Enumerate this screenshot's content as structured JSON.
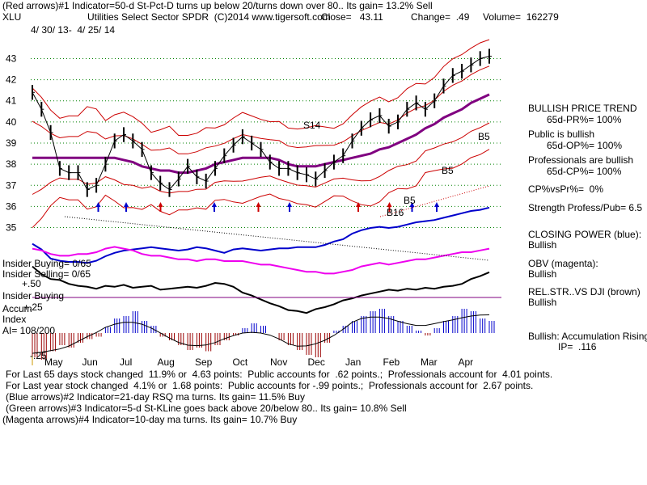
{
  "header": {
    "line1": "(Red arrows)#1 Indicator=50-d St-Pct-D turns up below 20/turns down over 80.. Its gain= 13.2% Sell",
    "symbol": "XLU",
    "title": "Utilities Select Sector SPDR  (C)2014 www.tigersoft.com",
    "close": "Close=   43.11",
    "change": "Change=  .49",
    "volume": "Volume=  162279",
    "date_range": "4/ 30/ 13-  4/ 25/ 14"
  },
  "chart_data": [
    {
      "type": "line",
      "name": "price-panel",
      "title": "Utilities Select Sector SPDR",
      "y_ticks": [
        "43",
        "42",
        "41",
        "40",
        "39",
        "38",
        "37",
        "36",
        "35"
      ],
      "ylim": [
        34.6,
        43.4
      ],
      "x_ticks": [
        "May",
        "Jun",
        "Jul",
        "Aug",
        "Sep",
        "Oct",
        "Nov",
        "Dec",
        "Jan",
        "Feb",
        "Mar",
        "Apr"
      ],
      "x": [
        0,
        5,
        10,
        15,
        20,
        25,
        30,
        35,
        40,
        45,
        50,
        55,
        60,
        65,
        70,
        75,
        80,
        85,
        90,
        95,
        100,
        105,
        110,
        115,
        120,
        125,
        130,
        135,
        140,
        145,
        150,
        155,
        160,
        165,
        170,
        175,
        180,
        185,
        190,
        195,
        200,
        205,
        210,
        215,
        220,
        225,
        230,
        235,
        240,
        245,
        250
      ],
      "series": [
        {
          "name": "XLU close",
          "values": [
            41.4,
            40.6,
            39.5,
            37.8,
            37.6,
            37.6,
            36.8,
            37.0,
            38.0,
            39.1,
            39.4,
            39.1,
            38.7,
            37.6,
            37.1,
            36.8,
            37.3,
            37.9,
            37.4,
            37.2,
            37.8,
            38.4,
            38.9,
            39.3,
            39.0,
            38.7,
            38.1,
            37.8,
            37.8,
            37.6,
            37.5,
            37.3,
            37.7,
            38.1,
            38.4,
            39.1,
            39.7,
            40.1,
            40.3,
            39.8,
            40.0,
            40.6,
            40.9,
            40.6,
            41.0,
            41.7,
            42.2,
            42.4,
            42.7,
            43.0,
            43.11
          ]
        },
        {
          "name": "65-dma",
          "values": [
            38.3,
            38.3,
            38.3,
            38.3,
            38.3,
            38.3,
            38.3,
            38.3,
            38.3,
            38.3,
            38.2,
            38.1,
            37.9,
            37.8,
            37.7,
            37.7,
            37.6,
            37.6,
            37.7,
            37.8,
            38.0,
            38.1,
            38.2,
            38.3,
            38.3,
            38.3,
            38.3,
            38.2,
            38.0,
            37.9,
            37.9,
            37.9,
            38.0,
            38.1,
            38.2,
            38.3,
            38.4,
            38.5,
            38.7,
            38.8,
            39.0,
            39.2,
            39.4,
            39.7,
            39.9,
            40.2,
            40.4,
            40.6,
            40.9,
            41.1,
            41.3
          ]
        }
      ]
    },
    {
      "type": "line",
      "name": "closing-power",
      "series": [
        {
          "name": "Closing Power (blue)",
          "values": [
            0.6,
            0.1,
            -0.7,
            -0.9,
            -1.0,
            -1.0,
            -1.1,
            -0.9,
            -0.5,
            -0.2,
            0.0,
            0.1,
            0.2,
            0.3,
            0.2,
            0.1,
            0.0,
            0.1,
            0.3,
            0.2,
            0.0,
            -0.2,
            0.1,
            0.2,
            0.1,
            0.0,
            0.1,
            0.2,
            0.2,
            0.3,
            0.3,
            0.3,
            0.5,
            0.8,
            1.0,
            1.5,
            1.8,
            2.0,
            2.1,
            2.0,
            2.1,
            2.3,
            2.5,
            2.6,
            2.7,
            2.9,
            3.1,
            3.3,
            3.5,
            3.6,
            3.8
          ]
        },
        {
          "name": "OBV (magenta)",
          "values": [
            0.2,
            0.1,
            -0.1,
            -0.2,
            -0.2,
            -0.1,
            -0.1,
            0.0,
            0.2,
            0.3,
            0.2,
            0.1,
            -0.1,
            -0.2,
            -0.2,
            -0.3,
            -0.4,
            -0.4,
            -0.5,
            -0.4,
            -0.4,
            -0.5,
            -0.5,
            -0.5,
            -0.6,
            -0.7,
            -0.7,
            -0.8,
            -0.9,
            -1.0,
            -1.1,
            -1.1,
            -1.2,
            -1.2,
            -1.1,
            -1.0,
            -0.8,
            -0.7,
            -0.6,
            -0.7,
            -0.6,
            -0.5,
            -0.4,
            -0.4,
            -0.3,
            -0.2,
            -0.1,
            0.0,
            0.0,
            0.1,
            0.2
          ]
        }
      ]
    },
    {
      "type": "line",
      "name": "rel-str-vs-dji",
      "series": [
        {
          "name": "REL.STR..VS DJI",
          "values": [
            3.2,
            2.4,
            1.9,
            1.8,
            1.4,
            1.2,
            1.1,
            0.9,
            1.2,
            1.1,
            1.3,
            1.0,
            1.1,
            1.2,
            0.8,
            0.9,
            1.0,
            1.1,
            1.0,
            1.2,
            1.5,
            1.4,
            1.1,
            0.5,
            0.2,
            -0.2,
            -0.6,
            -0.9,
            -1.3,
            -1.4,
            -1.6,
            -1.2,
            -1.0,
            -0.7,
            -0.3,
            -0.1,
            0.2,
            0.4,
            0.6,
            0.8,
            0.7,
            0.9,
            0.8,
            1.0,
            0.9,
            1.1,
            1.2,
            1.4,
            1.9,
            2.2,
            2.6
          ]
        }
      ]
    },
    {
      "type": "bar",
      "name": "accum-index",
      "ylabel": "Accum Index",
      "series": [
        {
          "name": "Accum Index",
          "values": [
            -20,
            -22,
            -15,
            -10,
            -12,
            -8,
            -5,
            -3,
            5,
            12,
            14,
            18,
            10,
            6,
            -3,
            -6,
            -10,
            -14,
            -12,
            -15,
            -10,
            -6,
            -2,
            4,
            8,
            6,
            0,
            -6,
            -10,
            -14,
            -18,
            -20,
            -8,
            2,
            6,
            10,
            14,
            18,
            20,
            14,
            10,
            6,
            2,
            -2,
            4,
            10,
            14,
            20,
            18,
            12,
            10
          ]
        }
      ]
    }
  ],
  "panel_labels": {
    "insider_buying_count": "Insider Buying= 0/65",
    "insider_selling_count": "Insider Selling= 0/65",
    "plus_50": "+.50",
    "insider_buying": "Insider Buying",
    "accum": "Accum",
    "plus_25": "+.25",
    "index": "Index",
    "ai": "AI= 108/200",
    "minus_25": "-.25"
  },
  "annotations": {
    "s14": "S14",
    "b5_a": "B5",
    "b5_b": "B5",
    "b5_c": "B5",
    "b16": "B16"
  },
  "side_panel": {
    "bullish_trend": "BULLISH PRICE TREND",
    "pr": "65d-PR%= 100%",
    "public": "Public is bullish",
    "op": "65d-OP%= 100%",
    "prof": "Professionals are bullish",
    "cp": "65d-CP%= 100%",
    "cpvspr": "CP%vsPr%=  0%",
    "strength": "Strength Profess/Pub= 6.5",
    "closing_power_label": "CLOSING POWER (blue):",
    "closing_power_val": "Bullish",
    "obv_label": "OBV (magenta):",
    "obv_val": "Bullish",
    "relstr_label": "REL.STR..VS DJI (brown)",
    "relstr_val": "Bullish",
    "accum_label": "Bullish: Accumulation Rising",
    "ip": "IP=  .116"
  },
  "footer": {
    "line1": "For Last 65 days stock changed  11.9% or  4.63 points:  Public accounts for  .62 points.;  Professionals account for  4.01 points.",
    "line2": "For Last year stock changed  4.1% or  1.68 points:  Public accounts for -.99 points.;  Professionals account for  2.67 points.",
    "line3": "(Blue arrows)#2 Indicator=21-day RSQ ma turns. Its gain= 11.5% Buy",
    "line4": "(Green arrows)#3 Indicator=5-d St-KLine goes back above 20/below 80.. Its gain= 10.8% Sell",
    "line5": "(Magenta arrows)#4 Indicator=10-day ma turns. Its gain= 10.7% Buy"
  },
  "colors": {
    "price": "#000000",
    "band": "#cc0000",
    "ma": "#800080",
    "closing_power": "#0000cc",
    "obv": "#ee00ee",
    "grid": "#008000",
    "accum_pos": "#0000cc",
    "accum_neg": "#990000",
    "insider_line": "#800080",
    "tick_text": "#000000"
  },
  "arrows": {
    "red_up": [
      [
        "Aug",
        0.1
      ],
      [
        "Oct",
        0.8
      ],
      [
        "Jan",
        0.4
      ],
      [
        "Feb",
        0.2
      ]
    ],
    "blue_up": [
      [
        "Jun",
        0.5
      ],
      [
        "Jul",
        0.2
      ],
      [
        "Sep",
        0.6
      ],
      [
        "Nov",
        0.6
      ],
      [
        "Feb",
        0.9
      ],
      [
        "Mar",
        0.5
      ]
    ]
  }
}
